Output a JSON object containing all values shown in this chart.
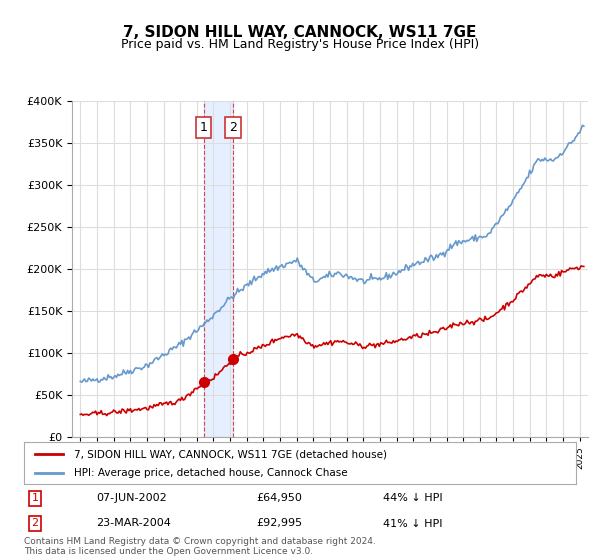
{
  "title": "7, SIDON HILL WAY, CANNOCK, WS11 7GE",
  "subtitle": "Price paid vs. HM Land Registry's House Price Index (HPI)",
  "ylabel_values": [
    "£0",
    "£50K",
    "£100K",
    "£150K",
    "£200K",
    "£250K",
    "£300K",
    "£350K",
    "£400K"
  ],
  "ylim": [
    0,
    400000
  ],
  "yticks": [
    0,
    50000,
    100000,
    150000,
    200000,
    250000,
    300000,
    350000,
    400000
  ],
  "transaction1": {
    "date_label": "07-JUN-2002",
    "price": 64950,
    "pct": "44%",
    "direction": "↓",
    "label": "1"
  },
  "transaction2": {
    "date_label": "23-MAR-2004",
    "price": 92995,
    "pct": "41%",
    "direction": "↓",
    "label": "2"
  },
  "legend_property": "7, SIDON HILL WAY, CANNOCK, WS11 7GE (detached house)",
  "legend_hpi": "HPI: Average price, detached house, Cannock Chase",
  "footer1": "Contains HM Land Registry data © Crown copyright and database right 2024.",
  "footer2": "This data is licensed under the Open Government Licence v3.0.",
  "property_color": "#cc0000",
  "hpi_color": "#6699cc",
  "shading_color": "#cce0ff",
  "transaction_color": "#cc0000",
  "background_color": "#ffffff",
  "grid_color": "#dddddd"
}
